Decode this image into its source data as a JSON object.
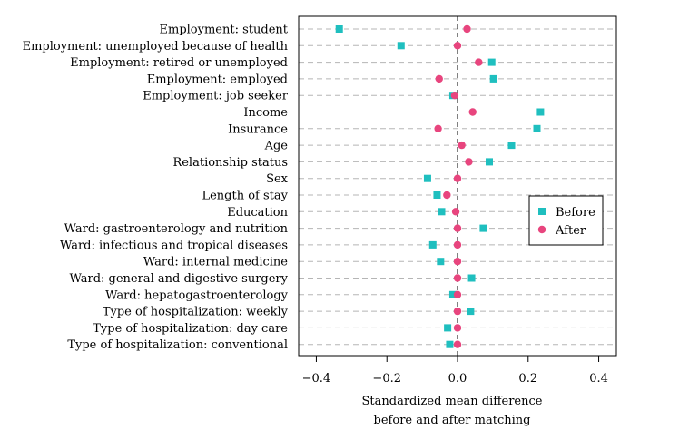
{
  "chart_data": {
    "type": "scatter",
    "title": "",
    "xlabel_line1": "Standardized mean difference",
    "xlabel_line2": "before and after matching",
    "ylabel": "",
    "xlim": [
      -0.45,
      0.45
    ],
    "xticks": [
      -0.4,
      -0.2,
      0.0,
      0.2,
      0.4
    ],
    "xtick_labels": [
      "−0.4",
      "−0.2",
      "0.0",
      "0.2",
      "0.4"
    ],
    "grid": "horizontal dashed",
    "reference_line": 0,
    "legend_position": "right",
    "categories": [
      "Employment: student",
      "Employment: unemployed because of health",
      "Employment: retired or unemployed",
      "Employment: employed",
      "Employment: job seeker",
      "Income",
      "Insurance",
      "Age",
      "Relationship status",
      "Sex",
      "Length of stay",
      "Education",
      "Ward: gastroenterology and nutrition",
      "Ward: infectious and tropical diseases",
      "Ward: internal medicine",
      "Ward: general and digestive surgery",
      "Ward: hepatogastroenterology",
      "Type of hospitalization: weekly",
      "Type of hospitalization: day care",
      "Type of hospitalization: conventional"
    ],
    "series": [
      {
        "name": "Before",
        "marker": "square",
        "color": "#1fbfbf",
        "values": [
          -0.335,
          -0.16,
          0.097,
          0.102,
          -0.013,
          0.235,
          0.225,
          0.153,
          0.09,
          -0.085,
          -0.058,
          -0.045,
          0.073,
          -0.07,
          -0.048,
          0.04,
          -0.013,
          0.037,
          -0.028,
          -0.022
        ]
      },
      {
        "name": "After",
        "marker": "circle",
        "color": "#e8457e",
        "values": [
          0.027,
          0.0,
          0.06,
          -0.052,
          -0.008,
          0.043,
          -0.055,
          0.012,
          0.032,
          0.0,
          -0.03,
          -0.005,
          0.0,
          0.0,
          0.0,
          0.0,
          0.0,
          0.0,
          0.0,
          0.0
        ]
      }
    ]
  }
}
